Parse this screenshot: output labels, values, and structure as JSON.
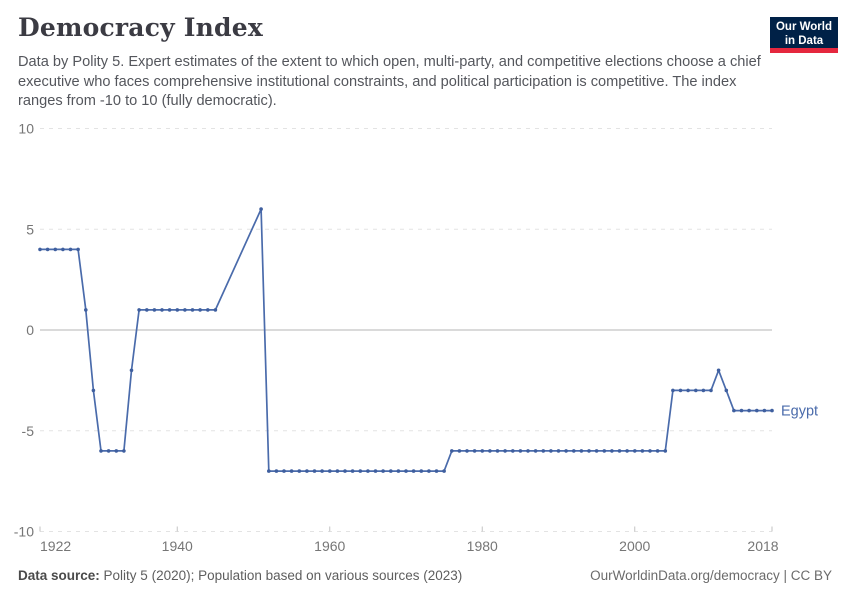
{
  "header": {
    "title": "Democracy Index",
    "subtitle": "Data by Polity 5. Expert estimates of the extent to which open, multi-party, and competitive elections choose a chief executive who faces comprehensive institutional constraints, and political participation is competitive. The index ranges from -10 to 10 (fully democratic).",
    "logo_line1": "Our World",
    "logo_line2": "in Data"
  },
  "chart_data": {
    "type": "line",
    "title": "Democracy Index",
    "xlabel": "",
    "ylabel": "",
    "xlim": [
      1922,
      2018
    ],
    "ylim": [
      -10,
      10
    ],
    "xticks": [
      1922,
      1940,
      1960,
      1980,
      2000,
      2018
    ],
    "yticks": [
      10,
      5,
      0,
      -5,
      -10
    ],
    "grid": "horizontal-dashed",
    "zero_line": true,
    "legend_position": "end-of-line-label",
    "series": [
      {
        "name": "Egypt",
        "points": [
          [
            1922,
            4
          ],
          [
            1923,
            4
          ],
          [
            1924,
            4
          ],
          [
            1925,
            4
          ],
          [
            1926,
            4
          ],
          [
            1927,
            4
          ],
          [
            1928,
            1
          ],
          [
            1929,
            -3
          ],
          [
            1930,
            -6
          ],
          [
            1931,
            -6
          ],
          [
            1932,
            -6
          ],
          [
            1933,
            -6
          ],
          [
            1934,
            -2
          ],
          [
            1935,
            1
          ],
          [
            1936,
            1
          ],
          [
            1937,
            1
          ],
          [
            1938,
            1
          ],
          [
            1939,
            1
          ],
          [
            1940,
            1
          ],
          [
            1941,
            1
          ],
          [
            1942,
            1
          ],
          [
            1943,
            1
          ],
          [
            1944,
            1
          ],
          [
            1945,
            1
          ],
          [
            1951,
            6
          ],
          [
            1952,
            -7
          ],
          [
            1953,
            -7
          ],
          [
            1954,
            -7
          ],
          [
            1955,
            -7
          ],
          [
            1956,
            -7
          ],
          [
            1957,
            -7
          ],
          [
            1958,
            -7
          ],
          [
            1959,
            -7
          ],
          [
            1960,
            -7
          ],
          [
            1961,
            -7
          ],
          [
            1962,
            -7
          ],
          [
            1963,
            -7
          ],
          [
            1964,
            -7
          ],
          [
            1965,
            -7
          ],
          [
            1966,
            -7
          ],
          [
            1967,
            -7
          ],
          [
            1968,
            -7
          ],
          [
            1969,
            -7
          ],
          [
            1970,
            -7
          ],
          [
            1971,
            -7
          ],
          [
            1972,
            -7
          ],
          [
            1973,
            -7
          ],
          [
            1974,
            -7
          ],
          [
            1975,
            -7
          ],
          [
            1976,
            -6
          ],
          [
            1977,
            -6
          ],
          [
            1978,
            -6
          ],
          [
            1979,
            -6
          ],
          [
            1980,
            -6
          ],
          [
            1981,
            -6
          ],
          [
            1982,
            -6
          ],
          [
            1983,
            -6
          ],
          [
            1984,
            -6
          ],
          [
            1985,
            -6
          ],
          [
            1986,
            -6
          ],
          [
            1987,
            -6
          ],
          [
            1988,
            -6
          ],
          [
            1989,
            -6
          ],
          [
            1990,
            -6
          ],
          [
            1991,
            -6
          ],
          [
            1992,
            -6
          ],
          [
            1993,
            -6
          ],
          [
            1994,
            -6
          ],
          [
            1995,
            -6
          ],
          [
            1996,
            -6
          ],
          [
            1997,
            -6
          ],
          [
            1998,
            -6
          ],
          [
            1999,
            -6
          ],
          [
            2000,
            -6
          ],
          [
            2001,
            -6
          ],
          [
            2002,
            -6
          ],
          [
            2003,
            -6
          ],
          [
            2004,
            -6
          ],
          [
            2005,
            -3
          ],
          [
            2006,
            -3
          ],
          [
            2007,
            -3
          ],
          [
            2008,
            -3
          ],
          [
            2009,
            -3
          ],
          [
            2010,
            -3
          ],
          [
            2011,
            -2
          ],
          [
            2012,
            -3
          ],
          [
            2013,
            -4
          ],
          [
            2014,
            -4
          ],
          [
            2015,
            -4
          ],
          [
            2016,
            -4
          ],
          [
            2017,
            -4
          ],
          [
            2018,
            -4
          ]
        ]
      }
    ]
  },
  "footer": {
    "source_label": "Data source:",
    "source_text": "Polity 5 (2020); Population based on various sources (2023)",
    "credit_text": "OurWorldinData.org/democracy | CC BY"
  },
  "colors": {
    "line": "#4a6bab",
    "point": "#3f5f9f",
    "series_label": "#4a6bab",
    "grid": "#e3e3e3",
    "zero_axis": "#b5b5b5",
    "tick_mark": "#c2c2c2",
    "axis_text": "#767676",
    "logo_bg": "#002147",
    "logo_stripe": "#e5273e"
  }
}
